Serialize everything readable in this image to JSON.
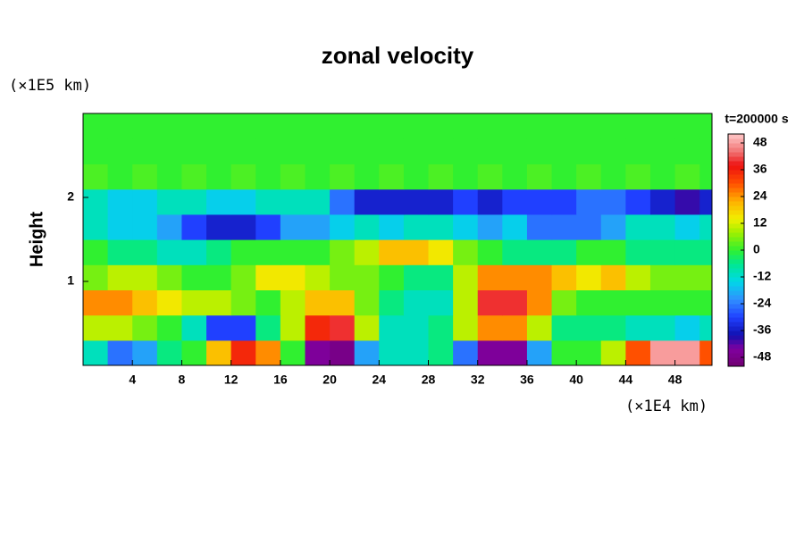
{
  "chart_data": {
    "type": "heatmap",
    "title": "zonal velocity",
    "ylabel": "Height",
    "xunit": "(×1E4 km)",
    "yunit": "(×1E5 km)",
    "colorbar_label": "t=200000 s",
    "xlim": [
      0,
      51
    ],
    "ylim": [
      0,
      3
    ],
    "xticks": [
      4,
      8,
      12,
      16,
      20,
      24,
      28,
      32,
      36,
      40,
      44,
      48
    ],
    "yticks": [
      1,
      2
    ],
    "clim": [
      -52,
      52
    ],
    "cticks": [
      48,
      36,
      24,
      12,
      0,
      -12,
      -24,
      -36,
      -48
    ],
    "colorscale": [
      [
        -52,
        "#700070"
      ],
      [
        -44,
        "#8000a0"
      ],
      [
        -38,
        "#1010b0"
      ],
      [
        -30,
        "#2040ff"
      ],
      [
        -22,
        "#3090ff"
      ],
      [
        -14,
        "#00d8e8"
      ],
      [
        -6,
        "#00e890"
      ],
      [
        0,
        "#30f030"
      ],
      [
        8,
        "#a0f000"
      ],
      [
        14,
        "#f0f000"
      ],
      [
        22,
        "#ffb000"
      ],
      [
        30,
        "#ff5000"
      ],
      [
        38,
        "#ee1010"
      ],
      [
        44,
        "#f07070"
      ],
      [
        52,
        "#ffc8c8"
      ]
    ],
    "x": [
      1,
      3,
      5,
      7,
      9,
      11,
      13,
      15,
      17,
      19,
      21,
      23,
      25,
      27,
      29,
      31,
      33,
      35,
      37,
      39,
      41,
      43,
      45,
      47,
      49,
      51
    ],
    "y": [
      0.15,
      0.45,
      0.75,
      1.05,
      1.35,
      1.65,
      1.95,
      2.25,
      2.55,
      2.85
    ],
    "z": [
      [
        -10,
        -25,
        -20,
        -5,
        0,
        20,
        35,
        25,
        0,
        -45,
        -48,
        -20,
        -10,
        -10,
        -5,
        -25,
        -45,
        -45,
        -20,
        0,
        0,
        10,
        30,
        48,
        48,
        30
      ],
      [
        10,
        10,
        5,
        0,
        -10,
        -30,
        -30,
        -5,
        10,
        35,
        40,
        10,
        -10,
        -10,
        -5,
        10,
        25,
        25,
        10,
        -5,
        -5,
        -5,
        -10,
        -10,
        -15,
        -10
      ],
      [
        25,
        25,
        20,
        15,
        10,
        10,
        5,
        0,
        10,
        20,
        20,
        5,
        -5,
        -10,
        -10,
        10,
        40,
        40,
        25,
        5,
        0,
        0,
        0,
        0,
        0,
        0
      ],
      [
        5,
        10,
        10,
        5,
        0,
        0,
        5,
        15,
        15,
        10,
        5,
        5,
        0,
        -5,
        -5,
        10,
        25,
        25,
        25,
        20,
        15,
        20,
        10,
        5,
        5,
        5
      ],
      [
        0,
        -5,
        -5,
        -10,
        -10,
        -5,
        0,
        0,
        0,
        0,
        5,
        10,
        20,
        20,
        15,
        5,
        0,
        -5,
        -5,
        -5,
        0,
        0,
        -5,
        -5,
        -5,
        -5
      ],
      [
        -10,
        -15,
        -15,
        -20,
        -30,
        -35,
        -35,
        -30,
        -20,
        -20,
        -15,
        -10,
        -15,
        -10,
        -10,
        -15,
        -20,
        -15,
        -25,
        -25,
        -25,
        -20,
        -10,
        -10,
        -15,
        -10
      ],
      [
        -10,
        -15,
        -15,
        -10,
        -10,
        -15,
        -15,
        -10,
        -10,
        -10,
        -25,
        -35,
        -35,
        -35,
        -35,
        -30,
        -35,
        -30,
        -30,
        -30,
        -25,
        -25,
        -30,
        -35,
        -40,
        -35
      ],
      [
        2,
        0,
        2,
        0,
        2,
        0,
        2,
        0,
        2,
        0,
        2,
        0,
        2,
        0,
        2,
        0,
        2,
        0,
        2,
        0,
        2,
        0,
        2,
        0,
        2,
        0
      ],
      [
        0,
        0,
        0,
        0,
        0,
        0,
        0,
        0,
        0,
        0,
        0,
        0,
        0,
        0,
        0,
        0,
        0,
        0,
        0,
        0,
        0,
        0,
        0,
        0,
        0,
        0
      ],
      [
        0,
        0,
        0,
        0,
        0,
        0,
        0,
        0,
        0,
        0,
        0,
        0,
        0,
        0,
        0,
        0,
        0,
        0,
        0,
        0,
        0,
        0,
        0,
        0,
        0,
        0
      ]
    ]
  }
}
